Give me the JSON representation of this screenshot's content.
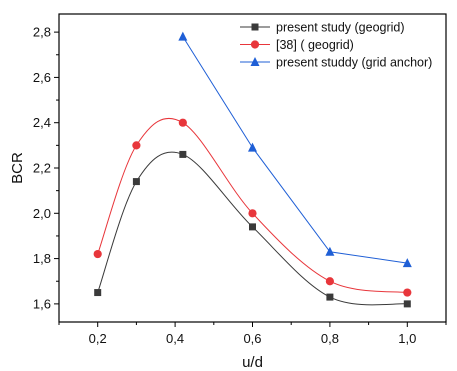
{
  "chart_data": {
    "type": "line",
    "title": "",
    "xlabel": "u/d",
    "ylabel": "BCR",
    "xlim": [
      0.1,
      1.1
    ],
    "ylim": [
      1.52,
      2.88
    ],
    "x_ticks": [
      "0,2",
      "0,4",
      "0,6",
      "0,8",
      "1,0"
    ],
    "y_ticks": [
      "1,6",
      "1,8",
      "2,0",
      "2,2",
      "2,4",
      "2,6",
      "2,8"
    ],
    "grid": false,
    "legend_position": "top-right",
    "series": [
      {
        "name": "present study (geogrid)",
        "marker": "square",
        "color": "#3a3a3a",
        "line": "smooth",
        "x": [
          0.2,
          0.3,
          0.42,
          0.6,
          0.8,
          1.0
        ],
        "y": [
          1.65,
          2.14,
          2.26,
          1.94,
          1.63,
          1.6
        ]
      },
      {
        "name": "[38] ( geogrid)",
        "marker": "circle",
        "color": "#e8363b",
        "line": "smooth",
        "x": [
          0.2,
          0.3,
          0.42,
          0.6,
          0.8,
          1.0
        ],
        "y": [
          1.82,
          2.3,
          2.4,
          2.0,
          1.7,
          1.65
        ]
      },
      {
        "name": "present studdy (grid anchor)",
        "marker": "triangle",
        "color": "#1f5fd6",
        "line": "straight",
        "x": [
          0.42,
          0.6,
          0.8,
          1.0
        ],
        "y": [
          2.78,
          2.29,
          1.83,
          1.78
        ]
      }
    ]
  }
}
